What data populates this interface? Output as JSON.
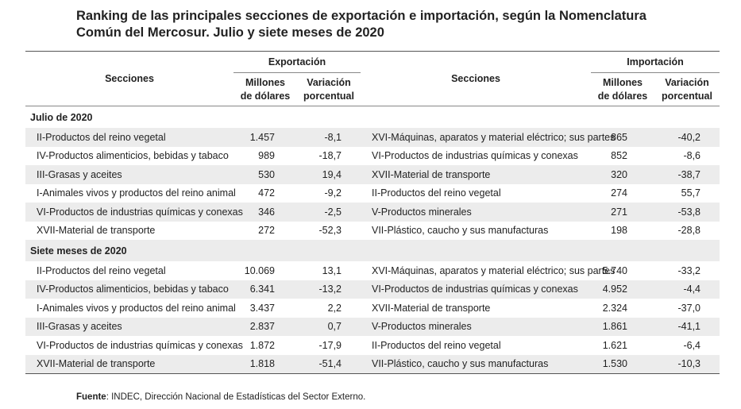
{
  "title": {
    "line1": "Ranking de las principales secciones de exportación e importación, según la Nomenclatura",
    "line2": "Común del Mercosur. Julio y siete meses de 2020"
  },
  "header": {
    "secciones": "Secciones",
    "exportacion": "Exportación",
    "importacion": "Importación",
    "millones_1": "Millones",
    "millones_2": "de dólares",
    "variacion_1": "Variación",
    "variacion_2": "porcentual"
  },
  "julio": {
    "label": "Julio de 2020",
    "rows": [
      {
        "exp_name": "II-Productos del reino vegetal",
        "exp_val": "1.457",
        "exp_var": "-8,1",
        "imp_name": "XVI-Máquinas, aparatos y material eléctrico; sus partes",
        "imp_val": "865",
        "imp_var": "-40,2"
      },
      {
        "exp_name": "IV-Productos alimenticios, bebidas y tabaco",
        "exp_val": "989",
        "exp_var": "-18,7",
        "imp_name": "VI-Productos de industrias químicas y conexas",
        "imp_val": "852",
        "imp_var": "-8,6"
      },
      {
        "exp_name": "III-Grasas y aceites",
        "exp_val": "530",
        "exp_var": "19,4",
        "imp_name": "XVII-Material de transporte",
        "imp_val": "320",
        "imp_var": "-38,7"
      },
      {
        "exp_name": "I-Animales vivos y productos del reino animal",
        "exp_val": "472",
        "exp_var": "-9,2",
        "imp_name": "II-Productos del reino vegetal",
        "imp_val": "274",
        "imp_var": "55,7"
      },
      {
        "exp_name": "VI-Productos de industrias químicas y conexas",
        "exp_val": "346",
        "exp_var": "-2,5",
        "imp_name": "V-Productos minerales",
        "imp_val": "271",
        "imp_var": "-53,8"
      },
      {
        "exp_name": "XVII-Material de transporte",
        "exp_val": "272",
        "exp_var": "-52,3",
        "imp_name": "VII-Plástico, caucho y sus manufacturas",
        "imp_val": "198",
        "imp_var": "-28,8"
      }
    ]
  },
  "siete": {
    "label": "Siete meses de 2020",
    "rows": [
      {
        "exp_name": "II-Productos del reino vegetal",
        "exp_val": "10.069",
        "exp_var": "13,1",
        "imp_name": "XVI-Máquinas, aparatos y material eléctrico; sus partes",
        "imp_val": "5.740",
        "imp_var": "-33,2"
      },
      {
        "exp_name": "IV-Productos alimenticios, bebidas y tabaco",
        "exp_val": "6.341",
        "exp_var": "-13,2",
        "imp_name": "VI-Productos de industrias químicas y conexas",
        "imp_val": "4.952",
        "imp_var": "-4,4"
      },
      {
        "exp_name": "I-Animales vivos y productos del reino animal",
        "exp_val": "3.437",
        "exp_var": "2,2",
        "imp_name": "XVII-Material de transporte",
        "imp_val": "2.324",
        "imp_var": "-37,0"
      },
      {
        "exp_name": "III-Grasas y aceites",
        "exp_val": "2.837",
        "exp_var": "0,7",
        "imp_name": "V-Productos minerales",
        "imp_val": "1.861",
        "imp_var": "-41,1"
      },
      {
        "exp_name": "VI-Productos de industrias químicas y conexas",
        "exp_val": "1.872",
        "exp_var": "-17,9",
        "imp_name": "II-Productos del reino vegetal",
        "imp_val": "1.621",
        "imp_var": "-6,4"
      },
      {
        "exp_name": "XVII-Material de transporte",
        "exp_val": "1.818",
        "exp_var": "-51,4",
        "imp_name": "VII-Plástico, caucho y sus manufacturas",
        "imp_val": "1.530",
        "imp_var": "-10,3"
      }
    ]
  },
  "source": {
    "label": "Fuente",
    "text": ": INDEC, Dirección Nacional de Estadísticas del Sector Externo."
  }
}
